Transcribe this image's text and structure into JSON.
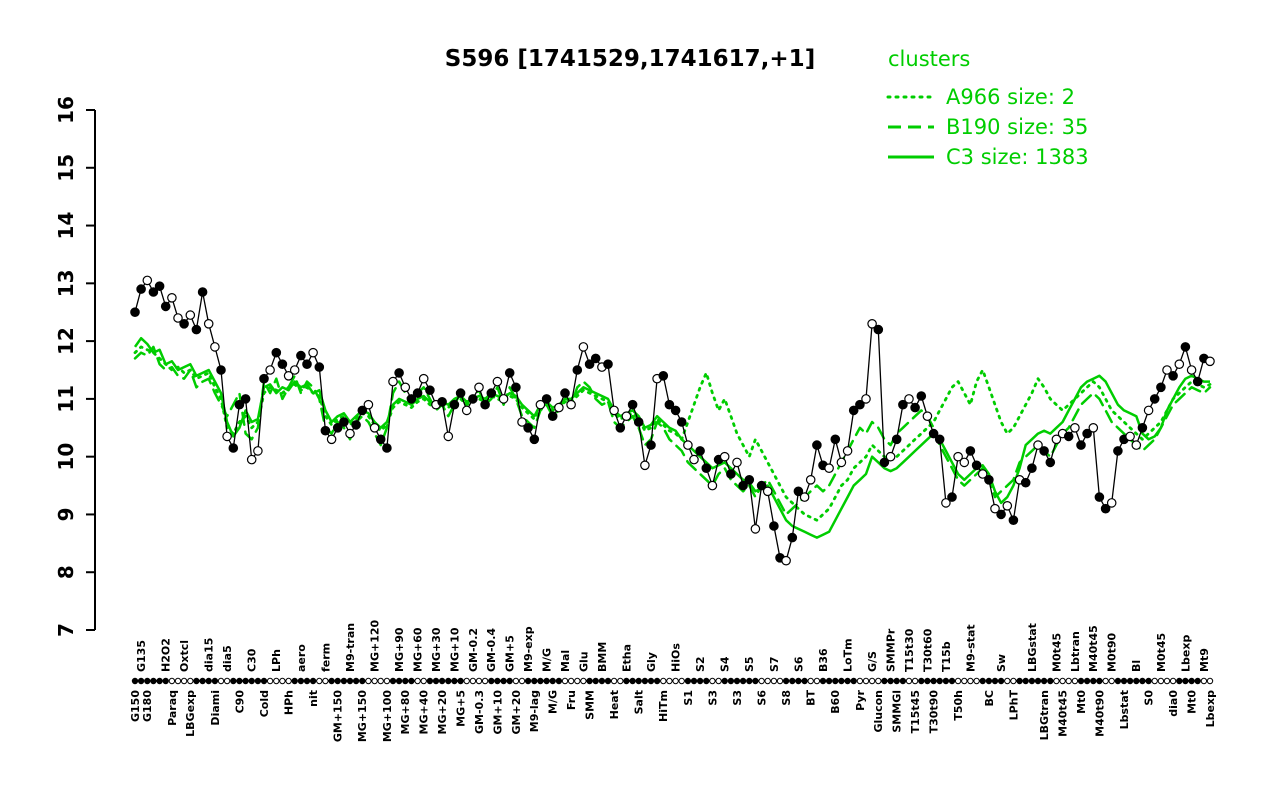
{
  "title": "S596 [1741529,1741617,+1]",
  "legend": {
    "heading": "clusters",
    "entries": [
      {
        "label": "A966 size: 2",
        "style": "dotted"
      },
      {
        "label": "B190 size: 35",
        "style": "dashed"
      },
      {
        "label": "C3 size: 1383",
        "style": "solid"
      }
    ]
  },
  "colors": {
    "cluster": "#00CD00",
    "points": "#000000",
    "background": "#ffffff"
  },
  "chart_data": {
    "type": "line",
    "title": "S596 [1741529,1741617,+1]",
    "xlabel": "",
    "ylabel": "",
    "ylim": [
      7,
      16
    ],
    "yticks": [
      7,
      8,
      9,
      10,
      11,
      12,
      13,
      14,
      15,
      16
    ],
    "n_conditions": 176,
    "series": [
      {
        "name": "S596 expression",
        "style": "points",
        "filled": "1101110010110010111001011001101101101100110101101010110101100110110110101011010101101011110011010101101011011001101001100110110110110100110101010110110010110110110010110101011011",
        "values": [
          12.5,
          12.9,
          13.05,
          12.85,
          12.95,
          12.6,
          12.75,
          12.4,
          12.3,
          12.45,
          12.2,
          12.85,
          12.3,
          11.9,
          11.5,
          10.35,
          10.15,
          10.9,
          11.0,
          9.95,
          10.1,
          11.35,
          11.5,
          11.8,
          11.6,
          11.4,
          11.5,
          11.75,
          11.6,
          11.8,
          11.55,
          10.45,
          10.3,
          10.5,
          10.6,
          10.4,
          10.55,
          10.8,
          10.9,
          10.5,
          10.3,
          10.15,
          11.3,
          11.45,
          11.2,
          11.0,
          11.1,
          11.35,
          11.15,
          10.9,
          10.95,
          10.35,
          10.9,
          11.1,
          10.8,
          11.0,
          11.2,
          10.9,
          11.1,
          11.3,
          11.0,
          11.45,
          11.2,
          10.6,
          10.5,
          10.3,
          10.9,
          11.0,
          10.7,
          10.85,
          11.1,
          10.9,
          11.5,
          11.9,
          11.6,
          11.7,
          11.55,
          11.6,
          10.8,
          10.5,
          10.7,
          10.9,
          10.6,
          9.85,
          10.2,
          11.35,
          11.4,
          10.9,
          10.8,
          10.6,
          10.2,
          9.95,
          10.1,
          9.8,
          9.5,
          9.95,
          10.0,
          9.7,
          9.9,
          9.5,
          9.6,
          8.75,
          9.5,
          9.4,
          8.8,
          8.25,
          8.2,
          8.6,
          9.4,
          9.3,
          9.6,
          10.2,
          9.85,
          9.8,
          10.3,
          9.9,
          10.1,
          10.8,
          10.9,
          11.0,
          12.3,
          12.2,
          9.9,
          10.0,
          10.3,
          10.9,
          11.0,
          10.85,
          11.05,
          10.7,
          10.4,
          10.3,
          9.2,
          9.3,
          10.0,
          9.9,
          10.1,
          9.85,
          9.7,
          9.6,
          9.1,
          9.0,
          9.15,
          8.9,
          9.6,
          9.55,
          9.8,
          10.2,
          10.1,
          9.9,
          10.3,
          10.4,
          10.35,
          10.5,
          10.2,
          10.4,
          10.5,
          9.3,
          9.1,
          9.2,
          10.1,
          10.3,
          10.35,
          10.2,
          10.5,
          10.8,
          11.0,
          11.2,
          11.5,
          11.4,
          11.6,
          11.9,
          11.5,
          11.3,
          11.7,
          11.65
        ]
      },
      {
        "name": "A966",
        "style": "dotted",
        "values": [
          11.8,
          11.9,
          11.85,
          11.8,
          11.7,
          11.6,
          11.5,
          11.55,
          11.45,
          11.5,
          11.35,
          11.4,
          11.45,
          11.2,
          11.0,
          10.5,
          10.4,
          10.6,
          10.7,
          10.5,
          10.6,
          11.1,
          11.2,
          11.15,
          11.1,
          11.2,
          11.25,
          11.15,
          11.2,
          11.1,
          11.05,
          10.7,
          10.55,
          10.65,
          10.7,
          10.55,
          10.65,
          10.75,
          10.7,
          10.55,
          10.45,
          10.55,
          10.85,
          10.95,
          10.9,
          10.85,
          10.95,
          11.0,
          10.9,
          10.85,
          10.9,
          10.85,
          10.95,
          11.0,
          10.9,
          10.95,
          11.0,
          10.95,
          11.05,
          11.0,
          10.95,
          11.05,
          11.0,
          10.85,
          10.75,
          10.65,
          10.85,
          10.9,
          10.8,
          10.85,
          10.95,
          10.95,
          11.05,
          11.15,
          11.1,
          11.05,
          11.0,
          10.95,
          10.75,
          10.65,
          10.7,
          10.75,
          10.65,
          10.45,
          10.5,
          10.65,
          10.55,
          10.45,
          10.4,
          10.3,
          10.6,
          10.9,
          11.2,
          11.45,
          11.1,
          10.8,
          11.0,
          10.7,
          10.4,
          10.2,
          10.0,
          10.3,
          10.1,
          9.9,
          9.7,
          9.5,
          9.3,
          9.2,
          9.1,
          9.0,
          8.95,
          8.9,
          9.0,
          9.1,
          9.3,
          9.5,
          9.6,
          9.8,
          9.9,
          10.0,
          10.2,
          10.1,
          10.0,
          9.95,
          10.0,
          10.1,
          10.2,
          10.3,
          10.4,
          10.5,
          10.6,
          10.8,
          11.0,
          11.2,
          11.3,
          11.1,
          10.9,
          11.3,
          11.5,
          11.2,
          10.9,
          10.6,
          10.4,
          10.5,
          10.7,
          10.9,
          11.1,
          11.35,
          11.2,
          11.0,
          10.9,
          10.8,
          10.9,
          11.0,
          11.1,
          11.2,
          11.3,
          11.2,
          11.0,
          10.8,
          10.7,
          10.6,
          10.5,
          10.4,
          10.3,
          10.4,
          10.5,
          10.6,
          10.8,
          11.0,
          11.1,
          11.2,
          11.3,
          11.25,
          11.2,
          11.25
        ]
      },
      {
        "name": "B190",
        "style": "dashed",
        "values": [
          11.7,
          11.8,
          11.75,
          11.9,
          11.6,
          11.5,
          11.55,
          11.4,
          11.35,
          11.5,
          11.2,
          11.3,
          11.35,
          11.1,
          10.9,
          10.7,
          10.9,
          11.1,
          10.4,
          10.3,
          10.5,
          11.3,
          11.1,
          11.35,
          11.0,
          11.2,
          11.4,
          11.1,
          11.3,
          11.2,
          11.0,
          10.5,
          10.4,
          10.6,
          10.5,
          10.3,
          10.6,
          10.7,
          10.6,
          10.4,
          10.2,
          10.5,
          11.1,
          11.3,
          11.1,
          10.9,
          11.1,
          11.2,
          11.0,
          10.8,
          10.9,
          10.7,
          10.9,
          11.1,
          10.9,
          11.05,
          11.15,
          10.9,
          11.0,
          11.2,
          10.9,
          11.2,
          11.0,
          10.7,
          10.6,
          10.5,
          10.8,
          10.9,
          10.7,
          10.8,
          11.05,
          10.9,
          11.2,
          11.3,
          11.2,
          11.0,
          10.9,
          10.95,
          10.6,
          10.5,
          10.6,
          10.7,
          10.5,
          10.2,
          10.3,
          10.6,
          10.5,
          10.3,
          10.2,
          10.1,
          9.9,
          9.8,
          9.7,
          9.6,
          9.5,
          9.7,
          9.8,
          9.6,
          9.5,
          9.4,
          9.5,
          9.3,
          9.5,
          9.6,
          9.4,
          9.2,
          9.0,
          9.1,
          9.2,
          9.3,
          9.4,
          9.5,
          9.4,
          9.5,
          9.7,
          9.9,
          10.1,
          10.3,
          10.5,
          10.4,
          10.6,
          10.5,
          10.3,
          10.2,
          10.4,
          10.5,
          10.6,
          10.7,
          10.8,
          10.7,
          10.5,
          10.2,
          10.0,
          9.8,
          9.6,
          9.5,
          9.6,
          9.7,
          9.8,
          9.6,
          9.3,
          9.4,
          9.5,
          9.6,
          9.9,
          10.0,
          10.1,
          10.2,
          10.1,
          10.0,
          10.2,
          10.4,
          10.5,
          10.7,
          10.9,
          11.0,
          11.1,
          11.0,
          10.8,
          10.6,
          10.5,
          10.4,
          10.3,
          10.2,
          10.1,
          10.2,
          10.3,
          10.5,
          10.7,
          10.9,
          11.0,
          11.1,
          11.2,
          11.15,
          11.1,
          11.2
        ]
      },
      {
        "name": "C3",
        "style": "solid",
        "values": [
          11.9,
          12.05,
          11.95,
          11.8,
          11.85,
          11.6,
          11.65,
          11.5,
          11.55,
          11.6,
          11.4,
          11.45,
          11.5,
          11.3,
          11.1,
          10.6,
          10.35,
          10.5,
          10.8,
          10.6,
          10.65,
          11.2,
          11.25,
          11.1,
          11.2,
          11.15,
          11.3,
          11.2,
          11.25,
          11.1,
          11.15,
          10.8,
          10.6,
          10.7,
          10.75,
          10.6,
          10.7,
          10.8,
          10.75,
          10.6,
          10.5,
          10.6,
          10.9,
          11.0,
          10.95,
          10.9,
          11.0,
          11.05,
          10.95,
          10.9,
          10.95,
          10.9,
          11.0,
          11.05,
          10.95,
          11.0,
          11.05,
          11.0,
          11.1,
          11.05,
          11.0,
          11.1,
          11.05,
          10.9,
          10.8,
          10.7,
          10.9,
          10.95,
          10.85,
          10.9,
          11.0,
          11.0,
          11.1,
          11.2,
          11.15,
          11.1,
          11.05,
          11.0,
          10.8,
          10.7,
          10.75,
          10.8,
          10.7,
          10.5,
          10.55,
          10.7,
          10.6,
          10.5,
          10.45,
          10.3,
          10.2,
          10.1,
          10.0,
          9.9,
          9.8,
          9.85,
          9.9,
          9.8,
          9.7,
          9.6,
          9.55,
          9.4,
          9.45,
          9.5,
          9.3,
          9.1,
          8.9,
          8.8,
          8.75,
          8.7,
          8.65,
          8.6,
          8.65,
          8.7,
          8.9,
          9.1,
          9.3,
          9.5,
          9.6,
          9.7,
          10.0,
          9.9,
          9.8,
          9.75,
          9.8,
          9.9,
          10.0,
          10.1,
          10.2,
          10.3,
          10.4,
          10.3,
          10.1,
          9.9,
          9.7,
          9.6,
          9.7,
          9.8,
          9.85,
          9.7,
          9.4,
          9.2,
          9.3,
          9.5,
          9.8,
          10.2,
          10.3,
          10.4,
          10.45,
          10.4,
          10.5,
          10.6,
          10.8,
          11.0,
          11.2,
          11.3,
          11.35,
          11.4,
          11.3,
          11.1,
          10.9,
          10.8,
          10.75,
          10.7,
          10.4,
          10.3,
          10.35,
          10.5,
          10.8,
          11.0,
          11.2,
          11.35,
          11.4,
          11.35,
          11.3,
          11.3
        ]
      }
    ],
    "axis_markers": "11111100001111001111110000111100111111000011110011111100001111001111110000111100111111000011110011111100001111001111110000111100111111000011110011111100001111001111110000111100",
    "x_labels_top": [
      {
        "t": "G135",
        "i": 1
      },
      {
        "t": "H2O2",
        "i": 5
      },
      {
        "t": "Oxtcl",
        "i": 8
      },
      {
        "t": "dia15",
        "i": 12
      },
      {
        "t": "dia5",
        "i": 15
      },
      {
        "t": "C30",
        "i": 19
      },
      {
        "t": "LPh",
        "i": 23
      },
      {
        "t": "aero",
        "i": 27
      },
      {
        "t": "ferm",
        "i": 31
      },
      {
        "t": "M9-tran",
        "i": 35
      },
      {
        "t": "MG+120",
        "i": 39
      },
      {
        "t": "MG+90",
        "i": 43
      },
      {
        "t": "MG+60",
        "i": 46
      },
      {
        "t": "MG+30",
        "i": 49
      },
      {
        "t": "MG+10",
        "i": 52
      },
      {
        "t": "GM-0.2",
        "i": 55
      },
      {
        "t": "GM-0.4",
        "i": 58
      },
      {
        "t": "GM+5",
        "i": 61
      },
      {
        "t": "M9-exp",
        "i": 64
      },
      {
        "t": "M/G",
        "i": 67
      },
      {
        "t": "Mal",
        "i": 70
      },
      {
        "t": "Glu",
        "i": 73
      },
      {
        "t": "BMM",
        "i": 76
      },
      {
        "t": "Etha",
        "i": 80
      },
      {
        "t": "Gly",
        "i": 84
      },
      {
        "t": "HiOs",
        "i": 88
      },
      {
        "t": "S2",
        "i": 92
      },
      {
        "t": "S4",
        "i": 96
      },
      {
        "t": "S5",
        "i": 100
      },
      {
        "t": "S7",
        "i": 104
      },
      {
        "t": "S6",
        "i": 108
      },
      {
        "t": "B36",
        "i": 112
      },
      {
        "t": "LoTm",
        "i": 116
      },
      {
        "t": "G/S",
        "i": 120
      },
      {
        "t": "SMMPr",
        "i": 123
      },
      {
        "t": "T15t30",
        "i": 126
      },
      {
        "t": "T30t60",
        "i": 129
      },
      {
        "t": "T15b",
        "i": 132
      },
      {
        "t": "M9-stat",
        "i": 136
      },
      {
        "t": "Sw",
        "i": 141
      },
      {
        "t": "LBGstat",
        "i": 146
      },
      {
        "t": "M0t45",
        "i": 150
      },
      {
        "t": "Lbtran",
        "i": 153
      },
      {
        "t": "M40t45",
        "i": 156
      },
      {
        "t": "M0t90",
        "i": 159
      },
      {
        "t": "Bl",
        "i": 163
      },
      {
        "t": "M0t45",
        "i": 167
      },
      {
        "t": "Lbexp",
        "i": 171
      },
      {
        "t": "Mt9",
        "i": 174
      }
    ],
    "x_labels_bottom": [
      {
        "t": "G150",
        "i": 0
      },
      {
        "t": "G180",
        "i": 2
      },
      {
        "t": "Paraq",
        "i": 6
      },
      {
        "t": "LBGexp",
        "i": 9
      },
      {
        "t": "Diami",
        "i": 13
      },
      {
        "t": "C90",
        "i": 17
      },
      {
        "t": "Cold",
        "i": 21
      },
      {
        "t": "HPh",
        "i": 25
      },
      {
        "t": "nit",
        "i": 29
      },
      {
        "t": "GM+150",
        "i": 33
      },
      {
        "t": "MG+150",
        "i": 37
      },
      {
        "t": "MG+100",
        "i": 41
      },
      {
        "t": "MG+80",
        "i": 44
      },
      {
        "t": "MG+40",
        "i": 47
      },
      {
        "t": "MG+20",
        "i": 50
      },
      {
        "t": "MG+5",
        "i": 53
      },
      {
        "t": "GM-0.3",
        "i": 56
      },
      {
        "t": "GM+10",
        "i": 59
      },
      {
        "t": "GM+20",
        "i": 62
      },
      {
        "t": "M9-lag",
        "i": 65
      },
      {
        "t": "M/G",
        "i": 68
      },
      {
        "t": "Fru",
        "i": 71
      },
      {
        "t": "SMM",
        "i": 74
      },
      {
        "t": "Heat",
        "i": 78
      },
      {
        "t": "Salt",
        "i": 82
      },
      {
        "t": "HiTm",
        "i": 86
      },
      {
        "t": "S1",
        "i": 90
      },
      {
        "t": "S3",
        "i": 94
      },
      {
        "t": "S3",
        "i": 98
      },
      {
        "t": "S6",
        "i": 102
      },
      {
        "t": "S8",
        "i": 106
      },
      {
        "t": "BT",
        "i": 110
      },
      {
        "t": "B60",
        "i": 114
      },
      {
        "t": "Pyr",
        "i": 118
      },
      {
        "t": "Glucon",
        "i": 121
      },
      {
        "t": "SMMGl",
        "i": 124
      },
      {
        "t": "T15t45",
        "i": 127
      },
      {
        "t": "T30t90",
        "i": 130
      },
      {
        "t": "T50h",
        "i": 134
      },
      {
        "t": "BC",
        "i": 139
      },
      {
        "t": "LPhT",
        "i": 143
      },
      {
        "t": "LBGtran",
        "i": 148
      },
      {
        "t": "M40t45",
        "i": 151
      },
      {
        "t": "Mt0",
        "i": 154
      },
      {
        "t": "M40t90",
        "i": 157
      },
      {
        "t": "Lbstat",
        "i": 161
      },
      {
        "t": "S0",
        "i": 165
      },
      {
        "t": "dia0",
        "i": 169
      },
      {
        "t": "Mt0",
        "i": 172
      },
      {
        "t": "Lbexp",
        "i": 175
      }
    ]
  }
}
